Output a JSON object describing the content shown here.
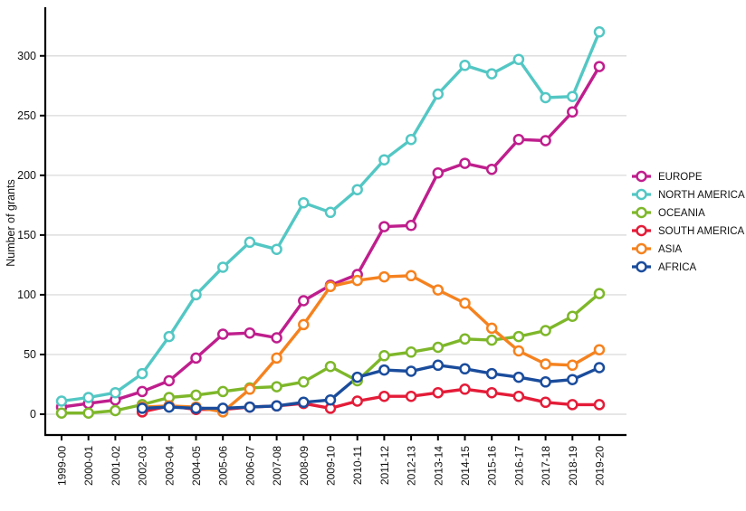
{
  "chart_data": {
    "type": "line",
    "title": "",
    "xlabel": "",
    "ylabel": "Number of grants",
    "ylim": [
      0,
      330
    ],
    "yticks": [
      0,
      50,
      100,
      150,
      200,
      250,
      300
    ],
    "grid": "horizontal-only",
    "grid_color": "#dedede",
    "axis_color": "#000000",
    "background_color": "#ffffff",
    "legend_position": "right",
    "marker_style": "open-circle-white-fill",
    "categories": [
      "1999-00",
      "2000-01",
      "2001-02",
      "2002-03",
      "2003-04",
      "2004-05",
      "2005-06",
      "2006-07",
      "2007-08",
      "2008-09",
      "2009-10",
      "2010-11",
      "2011-12",
      "2012-13",
      "2013-14",
      "2014-15",
      "2015-16",
      "2016-17",
      "2017-18",
      "2018-19",
      "2019-20"
    ],
    "series": [
      {
        "name": "EUROPE",
        "color": "#bf1e8d",
        "values": [
          6,
          9,
          12,
          19,
          28,
          47,
          67,
          68,
          64,
          95,
          108,
          117,
          157,
          158,
          202,
          210,
          205,
          230,
          229,
          253,
          291
        ]
      },
      {
        "name": "NORTH AMERICA",
        "color": "#53c7c4",
        "values": [
          11,
          14,
          18,
          34,
          65,
          100,
          123,
          144,
          138,
          177,
          169,
          188,
          213,
          230,
          268,
          292,
          285,
          297,
          265,
          266,
          320
        ]
      },
      {
        "name": "OCEANIA",
        "color": "#7eb72a",
        "values": [
          1,
          1,
          3,
          8,
          14,
          16,
          19,
          22,
          23,
          27,
          40,
          28,
          49,
          52,
          56,
          63,
          62,
          65,
          70,
          82,
          101
        ]
      },
      {
        "name": "SOUTH AMERICA",
        "color": "#e41c38",
        "values": [
          null,
          null,
          null,
          2,
          7,
          4,
          4,
          6,
          7,
          9,
          5,
          11,
          15,
          15,
          18,
          21,
          18,
          15,
          10,
          8,
          8
        ]
      },
      {
        "name": "ASIA",
        "color": "#f5821f",
        "values": [
          null,
          null,
          null,
          6,
          7,
          6,
          2,
          21,
          47,
          75,
          107,
          112,
          115,
          116,
          104,
          93,
          72,
          53,
          42,
          41,
          54
        ]
      },
      {
        "name": "AFRICA",
        "color": "#1a4c9c",
        "values": [
          null,
          null,
          null,
          5,
          6,
          5,
          5,
          6,
          7,
          10,
          12,
          31,
          37,
          36,
          41,
          38,
          34,
          31,
          27,
          29,
          39
        ]
      }
    ]
  }
}
